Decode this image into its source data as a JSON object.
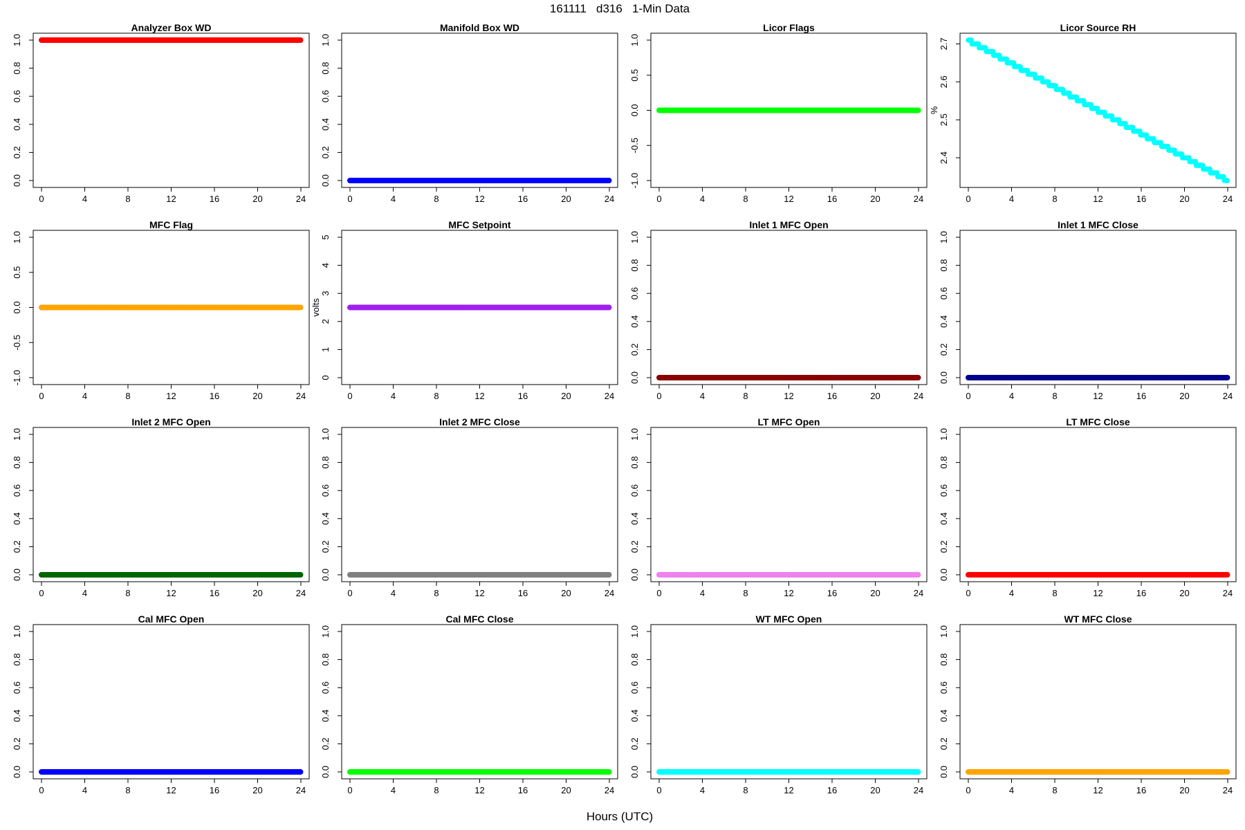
{
  "figure": {
    "title": "161111   d316   1-Min Data",
    "xlabel": "Hours (UTC)"
  },
  "chart_data": [
    {
      "type": "scatter",
      "title": "Analyzer Box WD",
      "ylabel": "",
      "color": "#ff0000",
      "xlim": [
        0,
        24
      ],
      "ylim": [
        0,
        1
      ],
      "x_ticks": [
        0,
        4,
        8,
        12,
        16,
        20,
        24
      ],
      "y_ticks": [
        "0.0",
        "0.2",
        "0.4",
        "0.6",
        "0.8",
        "1.0"
      ],
      "series": [
        {
          "start": 1.0,
          "end": 1.0
        }
      ]
    },
    {
      "type": "scatter",
      "title": "Manifold Box WD",
      "ylabel": "",
      "color": "#0000ff",
      "xlim": [
        0,
        24
      ],
      "ylim": [
        0,
        1
      ],
      "x_ticks": [
        0,
        4,
        8,
        12,
        16,
        20,
        24
      ],
      "y_ticks": [
        "0.0",
        "0.2",
        "0.4",
        "0.6",
        "0.8",
        "1.0"
      ],
      "series": [
        {
          "start": 0.0,
          "end": 0.0
        }
      ]
    },
    {
      "type": "scatter",
      "title": "Licor Flags",
      "ylabel": "",
      "color": "#00ff00",
      "xlim": [
        0,
        24
      ],
      "ylim": [
        -1,
        1
      ],
      "x_ticks": [
        0,
        4,
        8,
        12,
        16,
        20,
        24
      ],
      "y_ticks": [
        "-1.0",
        "-0.5",
        "0.0",
        "0.5",
        "1.0"
      ],
      "series": [
        {
          "start": 0.0,
          "end": 0.0
        }
      ]
    },
    {
      "type": "scatter",
      "title": "Licor Source RH",
      "ylabel": "%",
      "color": "#00ffff",
      "xlim": [
        0,
        24
      ],
      "ylim": [
        2.34,
        2.71
      ],
      "x_ticks": [
        0,
        4,
        8,
        12,
        16,
        20,
        24
      ],
      "y_ticks": [
        "2.4",
        "2.5",
        "2.6",
        "2.7"
      ],
      "series": [
        {
          "start": 2.71,
          "end": 2.34,
          "stepped": true
        }
      ]
    },
    {
      "type": "scatter",
      "title": "MFC Flag",
      "ylabel": "",
      "color": "#ffa500",
      "xlim": [
        0,
        24
      ],
      "ylim": [
        -1,
        1
      ],
      "x_ticks": [
        0,
        4,
        8,
        12,
        16,
        20,
        24
      ],
      "y_ticks": [
        "-1.0",
        "-0.5",
        "0.0",
        "0.5",
        "1.0"
      ],
      "series": [
        {
          "start": 0.0,
          "end": 0.0
        }
      ]
    },
    {
      "type": "scatter",
      "title": "MFC Setpoint",
      "ylabel": "volts",
      "color": "#a020f0",
      "xlim": [
        0,
        24
      ],
      "ylim": [
        0,
        5
      ],
      "x_ticks": [
        0,
        4,
        8,
        12,
        16,
        20,
        24
      ],
      "y_ticks": [
        "0",
        "1",
        "2",
        "3",
        "4",
        "5"
      ],
      "series": [
        {
          "start": 2.5,
          "end": 2.5
        }
      ]
    },
    {
      "type": "scatter",
      "title": "Inlet 1 MFC Open",
      "ylabel": "",
      "color": "#8b0000",
      "xlim": [
        0,
        24
      ],
      "ylim": [
        0,
        1
      ],
      "x_ticks": [
        0,
        4,
        8,
        12,
        16,
        20,
        24
      ],
      "y_ticks": [
        "0.0",
        "0.2",
        "0.4",
        "0.6",
        "0.8",
        "1.0"
      ],
      "series": [
        {
          "start": 0.0,
          "end": 0.0
        }
      ]
    },
    {
      "type": "scatter",
      "title": "Inlet 1 MFC Close",
      "ylabel": "",
      "color": "#00008b",
      "xlim": [
        0,
        24
      ],
      "ylim": [
        0,
        1
      ],
      "x_ticks": [
        0,
        4,
        8,
        12,
        16,
        20,
        24
      ],
      "y_ticks": [
        "0.0",
        "0.2",
        "0.4",
        "0.6",
        "0.8",
        "1.0"
      ],
      "series": [
        {
          "start": 0.0,
          "end": 0.0
        }
      ]
    },
    {
      "type": "scatter",
      "title": "Inlet 2 MFC Open",
      "ylabel": "",
      "color": "#006400",
      "xlim": [
        0,
        24
      ],
      "ylim": [
        0,
        1
      ],
      "x_ticks": [
        0,
        4,
        8,
        12,
        16,
        20,
        24
      ],
      "y_ticks": [
        "0.0",
        "0.2",
        "0.4",
        "0.6",
        "0.8",
        "1.0"
      ],
      "series": [
        {
          "start": 0.0,
          "end": 0.0
        }
      ]
    },
    {
      "type": "scatter",
      "title": "Inlet 2 MFC Close",
      "ylabel": "",
      "color": "#808080",
      "xlim": [
        0,
        24
      ],
      "ylim": [
        0,
        1
      ],
      "x_ticks": [
        0,
        4,
        8,
        12,
        16,
        20,
        24
      ],
      "y_ticks": [
        "0.0",
        "0.2",
        "0.4",
        "0.6",
        "0.8",
        "1.0"
      ],
      "series": [
        {
          "start": 0.0,
          "end": 0.0
        }
      ]
    },
    {
      "type": "scatter",
      "title": "LT MFC Open",
      "ylabel": "",
      "color": "#ee82ee",
      "xlim": [
        0,
        24
      ],
      "ylim": [
        0,
        1
      ],
      "x_ticks": [
        0,
        4,
        8,
        12,
        16,
        20,
        24
      ],
      "y_ticks": [
        "0.0",
        "0.2",
        "0.4",
        "0.6",
        "0.8",
        "1.0"
      ],
      "series": [
        {
          "start": 0.0,
          "end": 0.0
        }
      ]
    },
    {
      "type": "scatter",
      "title": "LT MFC Close",
      "ylabel": "",
      "color": "#ff0000",
      "xlim": [
        0,
        24
      ],
      "ylim": [
        0,
        1
      ],
      "x_ticks": [
        0,
        4,
        8,
        12,
        16,
        20,
        24
      ],
      "y_ticks": [
        "0.0",
        "0.2",
        "0.4",
        "0.6",
        "0.8",
        "1.0"
      ],
      "series": [
        {
          "start": 0.0,
          "end": 0.0
        }
      ]
    },
    {
      "type": "scatter",
      "title": "Cal MFC Open",
      "ylabel": "",
      "color": "#0000ff",
      "xlim": [
        0,
        24
      ],
      "ylim": [
        0,
        1
      ],
      "x_ticks": [
        0,
        4,
        8,
        12,
        16,
        20,
        24
      ],
      "y_ticks": [
        "0.0",
        "0.2",
        "0.4",
        "0.6",
        "0.8",
        "1.0"
      ],
      "series": [
        {
          "start": 0.0,
          "end": 0.0
        }
      ]
    },
    {
      "type": "scatter",
      "title": "Cal MFC Close",
      "ylabel": "",
      "color": "#00ff00",
      "xlim": [
        0,
        24
      ],
      "ylim": [
        0,
        1
      ],
      "x_ticks": [
        0,
        4,
        8,
        12,
        16,
        20,
        24
      ],
      "y_ticks": [
        "0.0",
        "0.2",
        "0.4",
        "0.6",
        "0.8",
        "1.0"
      ],
      "series": [
        {
          "start": 0.0,
          "end": 0.0
        }
      ]
    },
    {
      "type": "scatter",
      "title": "WT MFC Open",
      "ylabel": "",
      "color": "#00ffff",
      "xlim": [
        0,
        24
      ],
      "ylim": [
        0,
        1
      ],
      "x_ticks": [
        0,
        4,
        8,
        12,
        16,
        20,
        24
      ],
      "y_ticks": [
        "0.0",
        "0.2",
        "0.4",
        "0.6",
        "0.8",
        "1.0"
      ],
      "series": [
        {
          "start": 0.0,
          "end": 0.0
        }
      ]
    },
    {
      "type": "scatter",
      "title": "WT MFC Close",
      "ylabel": "",
      "color": "#ffa500",
      "xlim": [
        0,
        24
      ],
      "ylim": [
        0,
        1
      ],
      "x_ticks": [
        0,
        4,
        8,
        12,
        16,
        20,
        24
      ],
      "y_ticks": [
        "0.0",
        "0.2",
        "0.4",
        "0.6",
        "0.8",
        "1.0"
      ],
      "series": [
        {
          "start": 0.0,
          "end": 0.0
        }
      ]
    }
  ]
}
